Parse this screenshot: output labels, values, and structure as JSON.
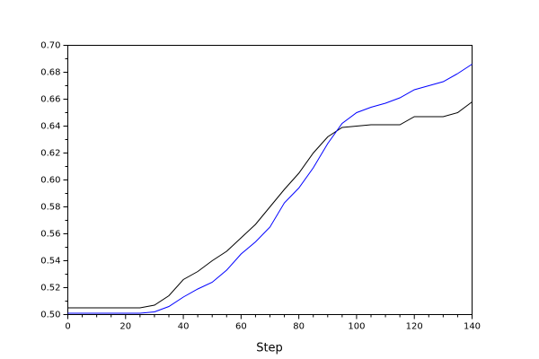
{
  "chart_data": {
    "type": "line",
    "xlabel": "Step",
    "x": [
      0,
      5,
      10,
      15,
      20,
      25,
      30,
      35,
      40,
      45,
      50,
      55,
      60,
      65,
      70,
      75,
      80,
      85,
      90,
      95,
      100,
      105,
      110,
      115,
      120,
      125,
      130,
      135,
      140
    ],
    "series": [
      {
        "color": "#000000",
        "values": [
          0.505,
          0.505,
          0.505,
          0.505,
          0.505,
          0.505,
          0.507,
          0.514,
          0.526,
          0.532,
          0.54,
          0.547,
          0.557,
          0.567,
          0.58,
          0.593,
          0.605,
          0.62,
          0.632,
          0.639,
          0.64,
          0.641,
          0.641,
          0.641,
          0.647,
          0.647,
          0.647,
          0.65,
          0.658
        ]
      },
      {
        "color": "#0000ff",
        "values": [
          0.501,
          0.501,
          0.501,
          0.501,
          0.501,
          0.501,
          0.502,
          0.506,
          0.513,
          0.519,
          0.524,
          0.533,
          0.545,
          0.554,
          0.565,
          0.583,
          0.594,
          0.609,
          0.627,
          0.642,
          0.65,
          0.654,
          0.657,
          0.661,
          0.667,
          0.67,
          0.673,
          0.679,
          0.686
        ]
      }
    ],
    "xlim": [
      0,
      140
    ],
    "xticks": [
      0,
      20,
      40,
      60,
      80,
      100,
      120,
      140
    ],
    "ylim": [
      0.5,
      0.7
    ],
    "yticks": [
      {
        "value": 0.5,
        "label": "0.50"
      },
      {
        "value": 0.52,
        "label": "0.52"
      },
      {
        "value": 0.54,
        "label": "0.54"
      },
      {
        "value": 0.56,
        "label": "0.56"
      },
      {
        "value": 0.58,
        "label": "0.58"
      },
      {
        "value": 0.6,
        "label": "0.60"
      },
      {
        "value": 0.62,
        "label": "0.62"
      },
      {
        "value": 0.64,
        "label": "0.64"
      },
      {
        "value": 0.66,
        "label": "0.66"
      },
      {
        "value": 0.68,
        "label": "0.68"
      },
      {
        "value": 0.7,
        "label": "0.70"
      }
    ],
    "grid": false
  }
}
